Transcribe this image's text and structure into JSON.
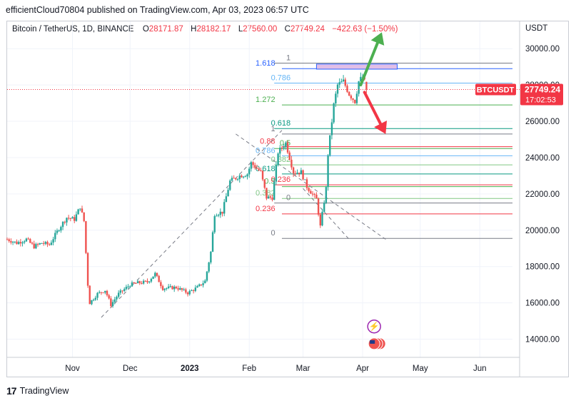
{
  "header": {
    "publisher_line": "efficientCloud70804 published on TradingView.com, Apr 03, 2023 06:57 UTC"
  },
  "legend": {
    "symbol": "Bitcoin / TetherUS, 1D, BINANCE",
    "open_label": "O",
    "open": "28171.87",
    "high_label": "H",
    "high": "28182.17",
    "low_label": "L",
    "low": "27560.00",
    "close_label": "C",
    "close": "27749.24",
    "change": "−422.63 (−1.50%)"
  },
  "price_scale": {
    "currency": "USDT"
  },
  "last_price": {
    "ticker": "BTCUSDT",
    "price": "27749.24",
    "countdown": "17:02:53"
  },
  "footer": {
    "brand": "TradingView"
  },
  "colors": {
    "up": "#26a69a",
    "down": "#ef5350",
    "up_arrow": "#4caf50",
    "down_arrow": "#f23645",
    "badge": "#f23645"
  },
  "chart_data": {
    "type": "candlestick",
    "y_axis": {
      "min": 13000,
      "max": 31500,
      "ticks": [
        14000,
        16000,
        18000,
        20000,
        22000,
        24000,
        26000,
        28000,
        30000
      ],
      "tick_labels": [
        "14000.00",
        "16000.00",
        "18000.00",
        "20000.00",
        "22000.00",
        "24000.00",
        "26000.00",
        "28000.00",
        "30000.00"
      ]
    },
    "x_axis": {
      "labels": [
        "Nov",
        "Dec",
        "2023",
        "Feb",
        "Mar",
        "Apr",
        "May",
        "Jun"
      ],
      "label_dates": [
        "2022-11-01",
        "2022-12-01",
        "2023-01-01",
        "2023-02-01",
        "2023-03-01",
        "2023-04-01",
        "2023-05-01",
        "2023-06-01"
      ],
      "start": "2022-09-28",
      "end": "2023-06-18"
    },
    "price_path": [
      [
        "2022-09-28",
        19500
      ],
      [
        "2022-10-03",
        19300
      ],
      [
        "2022-10-08",
        19500
      ],
      [
        "2022-10-12",
        19100
      ],
      [
        "2022-10-16",
        19300
      ],
      [
        "2022-10-20",
        19200
      ],
      [
        "2022-10-25",
        20100
      ],
      [
        "2022-10-29",
        20700
      ],
      [
        "2022-11-02",
        20600
      ],
      [
        "2022-11-05",
        21300
      ],
      [
        "2022-11-07",
        20500
      ],
      [
        "2022-11-09",
        17000
      ],
      [
        "2022-11-10",
        16000
      ],
      [
        "2022-11-14",
        16500
      ],
      [
        "2022-11-18",
        16700
      ],
      [
        "2022-11-21",
        15900
      ],
      [
        "2022-11-25",
        16500
      ],
      [
        "2022-12-01",
        17000
      ],
      [
        "2022-12-05",
        17100
      ],
      [
        "2022-12-10",
        17150
      ],
      [
        "2022-12-14",
        17600
      ],
      [
        "2022-12-18",
        16800
      ],
      [
        "2022-12-25",
        16850
      ],
      [
        "2022-12-31",
        16550
      ],
      [
        "2023-01-05",
        16850
      ],
      [
        "2023-01-09",
        17200
      ],
      [
        "2023-01-12",
        18800
      ],
      [
        "2023-01-14",
        20900
      ],
      [
        "2023-01-18",
        21000
      ],
      [
        "2023-01-22",
        22700
      ],
      [
        "2023-01-27",
        23000
      ],
      [
        "2023-01-31",
        23100
      ],
      [
        "2023-02-02",
        23700
      ],
      [
        "2023-02-07",
        23200
      ],
      [
        "2023-02-10",
        21800
      ],
      [
        "2023-02-13",
        21800
      ],
      [
        "2023-02-16",
        24300
      ],
      [
        "2023-02-20",
        24800
      ],
      [
        "2023-02-24",
        23200
      ],
      [
        "2023-02-28",
        23200
      ],
      [
        "2023-03-03",
        22400
      ],
      [
        "2023-03-08",
        21700
      ],
      [
        "2023-03-10",
        20200
      ],
      [
        "2023-03-13",
        22300
      ],
      [
        "2023-03-14",
        24200
      ],
      [
        "2023-03-17",
        26900
      ],
      [
        "2023-03-19",
        28000
      ],
      [
        "2023-03-22",
        28200
      ],
      [
        "2023-03-25",
        27500
      ],
      [
        "2023-03-28",
        27100
      ],
      [
        "2023-03-30",
        28200
      ],
      [
        "2023-04-01",
        28450
      ],
      [
        "2023-04-02",
        28171.87
      ],
      [
        "2023-04-03",
        27749.24
      ]
    ],
    "last_candle": {
      "date": "2023-04-03",
      "open": 28171.87,
      "high": 28182.17,
      "low": 27560.0,
      "close": 27749.24
    },
    "fib_left": {
      "levels": [
        {
          "label": "1.618",
          "price": 28900,
          "color": "#2962ff"
        },
        {
          "label": "1.272",
          "price": 26900,
          "color": "#4caf50"
        },
        {
          "label": "1",
          "price": 25300,
          "color": "#787b86"
        },
        {
          "label": "0.88",
          "price": 24600,
          "color": "#f23645"
        },
        {
          "label": "0.786",
          "price": 24100,
          "color": "#64b5f6"
        },
        {
          "label": "0.618",
          "price": 23100,
          "color": "#089981"
        },
        {
          "label": "0.5",
          "price": 22400,
          "color": "#4caf50"
        },
        {
          "label": "0.382",
          "price": 21750,
          "color": "#81c784"
        },
        {
          "label": "0.236",
          "price": 20900,
          "color": "#f23645"
        },
        {
          "label": "0",
          "price": 19550,
          "color": "#787b86"
        }
      ],
      "start_date": "2023-02-18",
      "end_date": "2023-06-18",
      "label_date": "2023-02-16"
    },
    "fib_right": {
      "levels": [
        {
          "label": "1",
          "price": 29200,
          "color": "#787b86"
        },
        {
          "label": "0.786",
          "price": 28100,
          "color": "#64b5f6"
        },
        {
          "label": "0.618",
          "price": 25600,
          "color": "#089981"
        },
        {
          "label": "0.5",
          "price": 24500,
          "color": "#4caf50"
        },
        {
          "label": "0.382",
          "price": 23600,
          "color": "#81c784"
        },
        {
          "label": "0.236",
          "price": 22500,
          "color": "#f23645"
        },
        {
          "label": "0",
          "price": 21500,
          "color": "#787b86"
        }
      ],
      "start_date": "2023-02-14",
      "end_date": "2023-06-18",
      "label_date": "2023-02-24"
    },
    "target_zone": {
      "from_date": "2023-03-08",
      "to_date": "2023-04-19",
      "price_low": 28870,
      "price_high": 29150,
      "color": "#e1bee7",
      "border": "#2962ff"
    },
    "trend_lines": [
      {
        "from": [
          "2022-11-16",
          15200
        ],
        "to": [
          "2023-02-18",
          25500
        ]
      },
      {
        "from": [
          "2023-01-25",
          25300
        ],
        "to": [
          "2023-04-13",
          19500
        ]
      },
      {
        "from": [
          "2023-03-01",
          22300
        ],
        "to": [
          "2023-03-25",
          19500
        ]
      }
    ],
    "arrows": [
      {
        "dir": "up",
        "from": [
          "2023-03-31",
          28000
        ],
        "to": [
          "2023-04-11",
          30900
        ]
      },
      {
        "dir": "down",
        "from": [
          "2023-04-02",
          27600
        ],
        "to": [
          "2023-04-13",
          25300
        ]
      }
    ],
    "event_icons": [
      {
        "name": "lightning-event-icon",
        "date": "2023-04-07",
        "price": 14700
      },
      {
        "name": "us-flag-event-icon",
        "date": "2023-04-07",
        "price": 13750
      }
    ]
  }
}
